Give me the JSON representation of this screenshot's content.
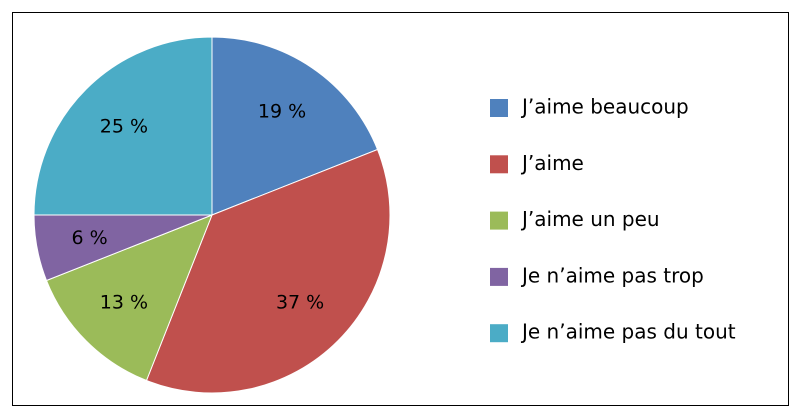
{
  "chart_data": {
    "type": "pie",
    "categories": [
      "J’aime beaucoup",
      "J’aime",
      "J’aime un peu",
      "Je n’aime pas trop",
      "Je n’aime pas du tout"
    ],
    "values": [
      19,
      37,
      13,
      6,
      25
    ],
    "value_labels": [
      "19 %",
      "37 %",
      "13 %",
      "6 %",
      "25 %"
    ],
    "colors": [
      "#4f81bd",
      "#c0504d",
      "#9bbb59",
      "#8064a2",
      "#4bacc6"
    ]
  }
}
